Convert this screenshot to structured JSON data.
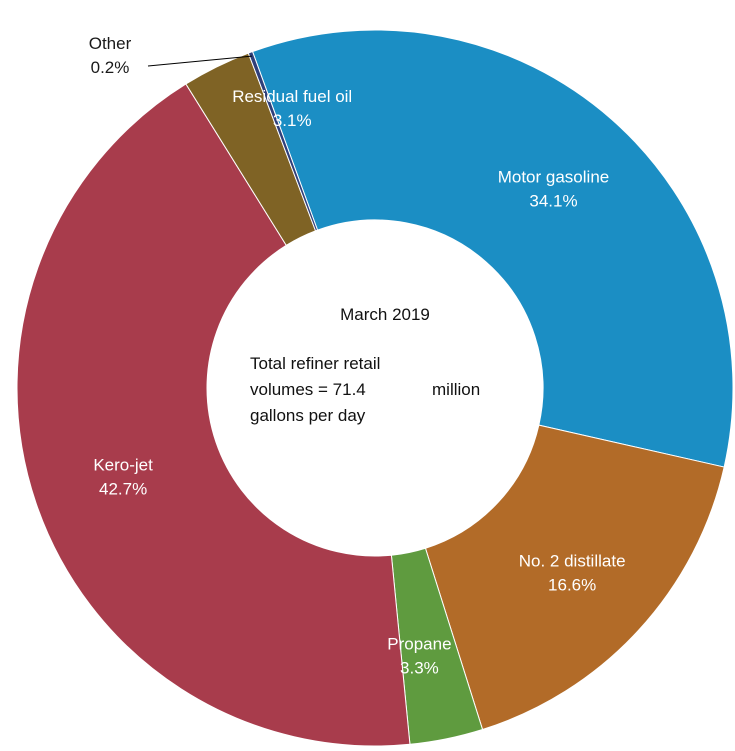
{
  "chart_data": {
    "type": "pie",
    "categories": [
      "Motor gasoline",
      "No. 2 distillate",
      "Propane",
      "Kero-jet",
      "Residual fuel oil",
      "Other"
    ],
    "values": [
      34.1,
      16.6,
      3.3,
      42.7,
      3.1,
      0.2
    ],
    "value_labels": [
      "34.1%",
      "16.6%",
      "3.3%",
      "42.7%",
      "3.1%",
      "0.2%"
    ],
    "colors": [
      "#1b8ec4",
      "#b26b28",
      "#5f9b3f",
      "#a83c4c",
      "#7f6325",
      "#2f3f7a"
    ],
    "center": {
      "title": "March 2019",
      "line1": "Total  refiner retail",
      "line2_prefix": "volumes  =  71.4",
      "line2_suffix": "million",
      "line3": "gallons per day"
    }
  }
}
